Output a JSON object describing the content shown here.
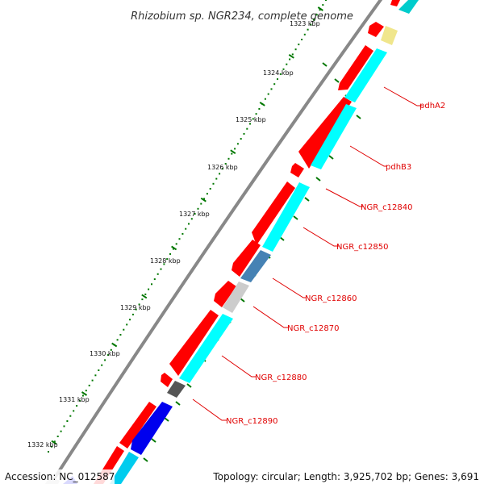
{
  "title": "Rhizobium sp. NGR234, complete genome",
  "ticks": [
    "1323 kbp",
    "1324 kbp",
    "1325 kbp",
    "1326 kbp",
    "1327 kbp",
    "1328 kbp",
    "1329 kbp",
    "1330 kbp",
    "1331 kbp",
    "1332 kbp"
  ],
  "gene_labels": [
    "pdhA2",
    "pdhB3",
    "NGR_c12840",
    "NGR_c12850",
    "NGR_c12860",
    "NGR_c12870",
    "NGR_c12880",
    "NGR_c12890"
  ],
  "footer": {
    "accession": "Accession: NC_012587",
    "summary": "Topology: circular; Length: 3,925,702 bp; Genes: 3,691"
  },
  "colors": {
    "backbone": "#888888",
    "forward_cds": "#ff0000",
    "reverse_cds": "#00ffff",
    "blue_cds": "#0000ee",
    "steelblue_cds": "#4682b4",
    "grey_cds": "#cccccc",
    "dark_cds": "#555555",
    "khaki_cds": "#f0e68c",
    "tick": "#007700",
    "label": "#e00000"
  }
}
